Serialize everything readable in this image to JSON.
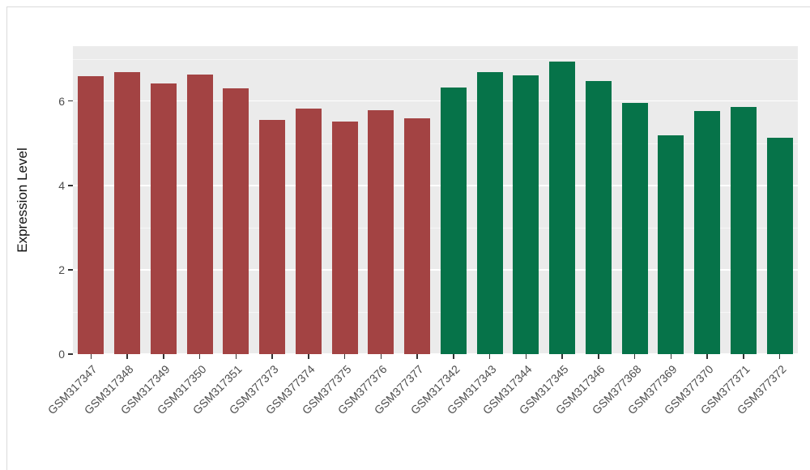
{
  "figure": {
    "background": "#FFFFFF",
    "panel_background": "#EBEBEB",
    "gridline_color": "#FFFFFF",
    "axis_text_color": "#4D4D4D",
    "tick_mark_color": "#333333",
    "frame_border_color": "#DADADA"
  },
  "chart_data": {
    "type": "bar",
    "title": "",
    "xlabel": "",
    "ylabel": "Expression Level",
    "ylim": [
      0,
      7.3
    ],
    "yticks": [
      0,
      2,
      4,
      6
    ],
    "minor_gridlines": [
      1,
      3,
      5,
      7
    ],
    "grid": true,
    "legend": "none",
    "categories": [
      "GSM317347",
      "GSM317348",
      "GSM317349",
      "GSM317350",
      "GSM317351",
      "GSM377373",
      "GSM377374",
      "GSM377375",
      "GSM377376",
      "GSM377377",
      "GSM317342",
      "GSM317343",
      "GSM317344",
      "GSM317345",
      "GSM317346",
      "GSM377368",
      "GSM377369",
      "GSM377370",
      "GSM377371",
      "GSM377372"
    ],
    "values": [
      6.58,
      6.68,
      6.42,
      6.63,
      6.31,
      5.55,
      5.82,
      5.52,
      5.79,
      5.59,
      6.33,
      6.68,
      6.61,
      6.93,
      6.48,
      5.96,
      5.18,
      5.76,
      5.85,
      5.12
    ],
    "bar_groups": [
      0,
      0,
      0,
      0,
      0,
      0,
      0,
      0,
      0,
      0,
      1,
      1,
      1,
      1,
      1,
      1,
      1,
      1,
      1,
      1
    ],
    "group_colors": [
      "#A34343",
      "#067349"
    ]
  }
}
